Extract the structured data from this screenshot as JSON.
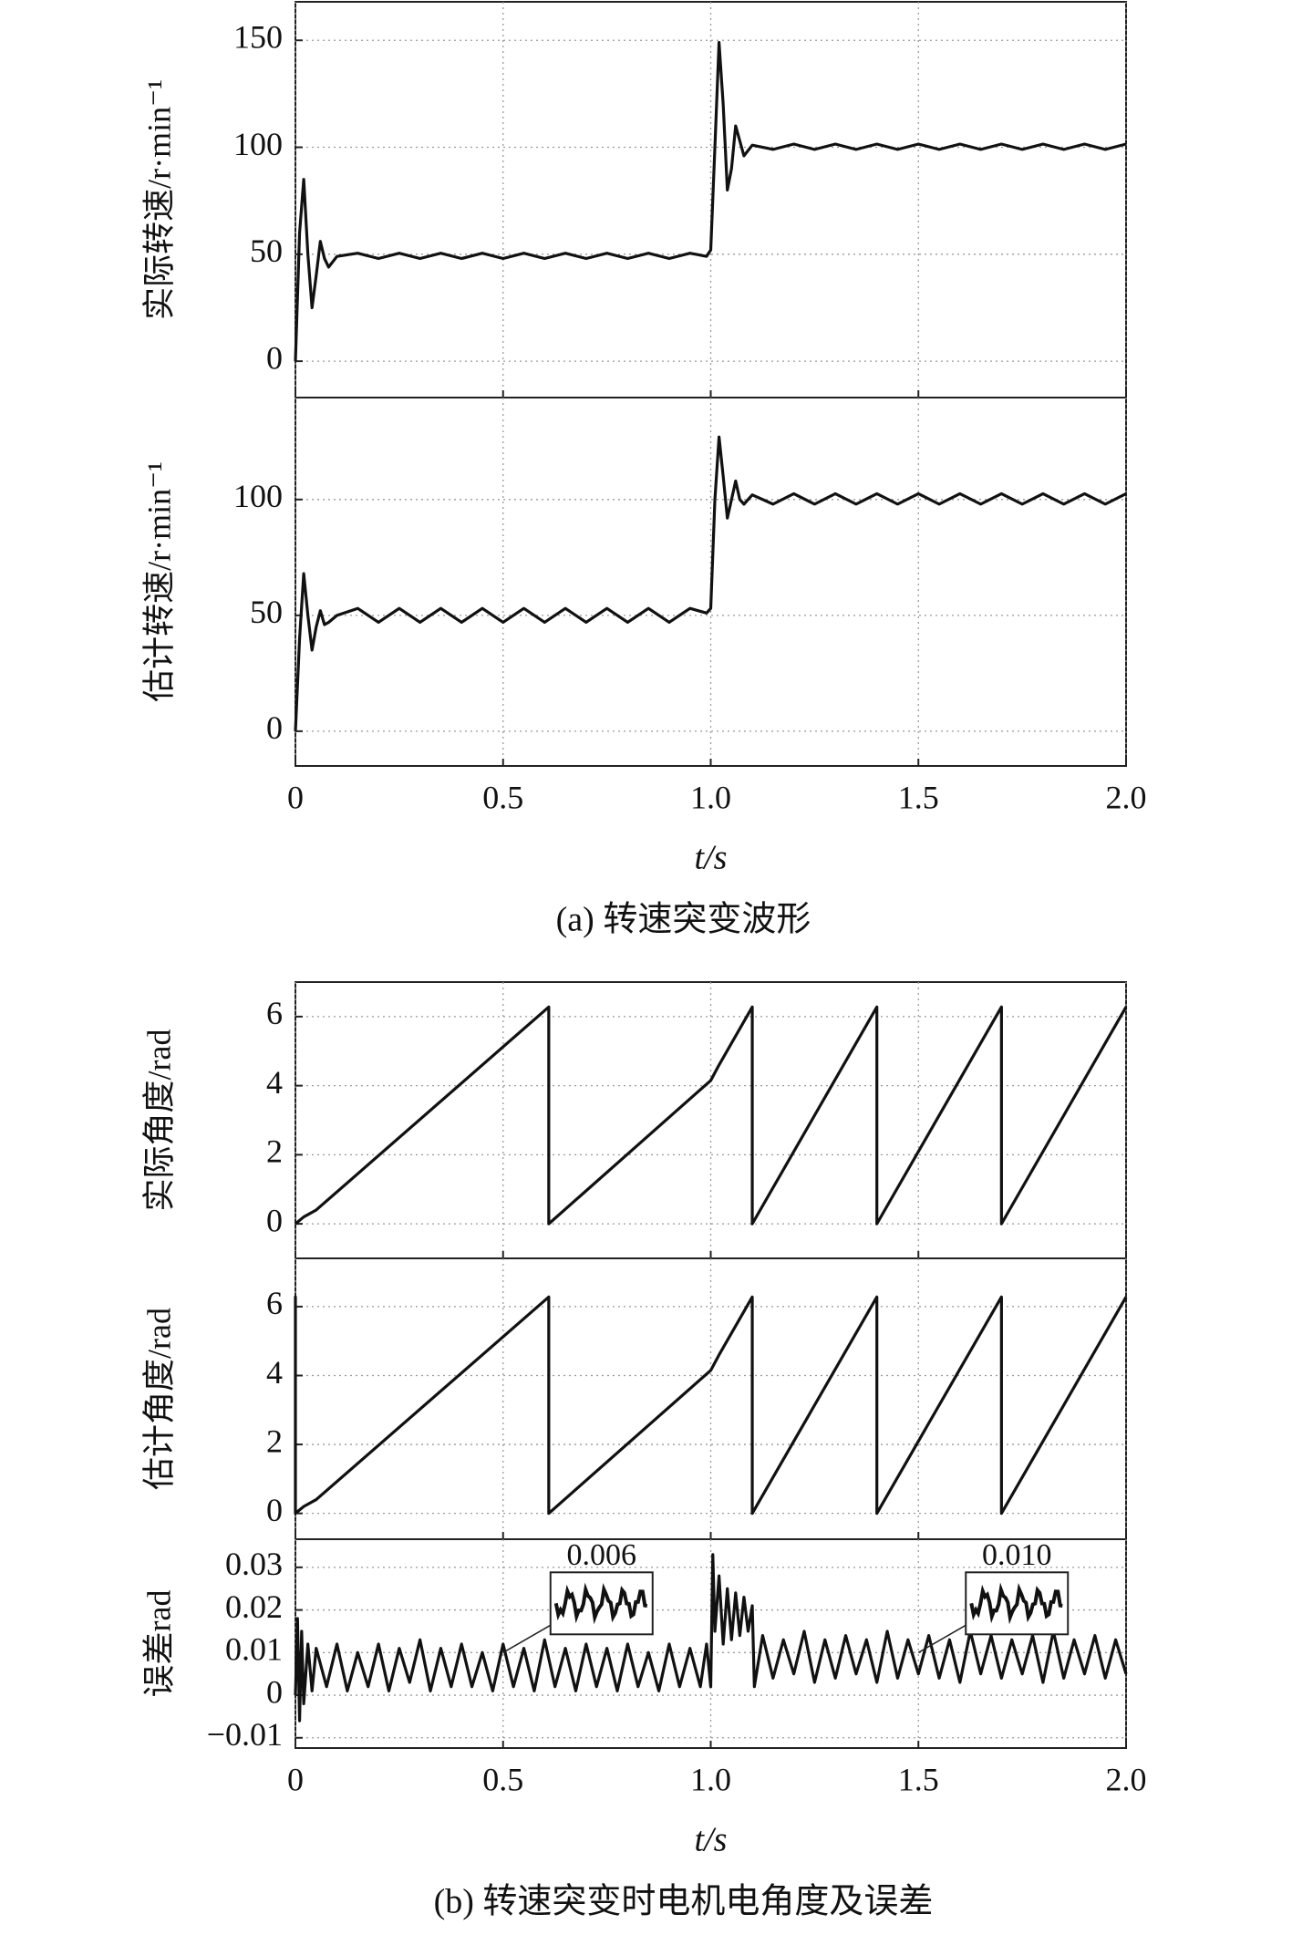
{
  "chart_data": [
    {
      "type": "line",
      "ylabel": "实际转速/r·min⁻¹",
      "color": "#111111",
      "grid": true,
      "show_xtick_labels": false,
      "xlim": [
        0,
        2
      ],
      "xticks": [
        0,
        0.5,
        {
          "value": 1,
          "label": "1.0"
        },
        1.5,
        {
          "value": 2,
          "label": "2.0"
        }
      ],
      "ylim": [
        -17,
        168
      ],
      "yticks": [
        0,
        50,
        100,
        150
      ],
      "x": [
        0,
        0.01,
        0.02,
        0.03,
        0.04,
        0.05,
        0.06,
        0.07,
        0.08,
        0.1,
        0.15,
        0.2,
        0.25,
        0.3,
        0.35,
        0.4,
        0.45,
        0.5,
        0.55,
        0.6,
        0.65,
        0.7,
        0.75,
        0.8,
        0.85,
        0.9,
        0.95,
        0.99,
        1.0,
        1.01,
        1.02,
        1.03,
        1.04,
        1.05,
        1.06,
        1.07,
        1.08,
        1.1,
        1.15,
        1.2,
        1.25,
        1.3,
        1.35,
        1.4,
        1.45,
        1.5,
        1.55,
        1.6,
        1.65,
        1.7,
        1.75,
        1.8,
        1.85,
        1.9,
        1.95,
        2.0
      ],
      "values": [
        0,
        60,
        85,
        50,
        25,
        40,
        56,
        48,
        44,
        49,
        50.5,
        48,
        50.5,
        48,
        50.5,
        48,
        50.5,
        48,
        50.5,
        48,
        50.5,
        48,
        50.5,
        48,
        50.5,
        48,
        50.5,
        49,
        52,
        100,
        149,
        120,
        80,
        90,
        110,
        103,
        96,
        101,
        99,
        101.5,
        99,
        101.5,
        99,
        101.5,
        99,
        101.5,
        99,
        101.5,
        99,
        101.5,
        99,
        101.5,
        99,
        101.5,
        99,
        101.5
      ]
    },
    {
      "type": "line",
      "ylabel": "估计转速/r·min⁻¹",
      "xlabel": "t/s",
      "caption": "(a) 转速突变波形",
      "color": "#111111",
      "grid": true,
      "show_xtick_labels": true,
      "xlim": [
        0,
        2
      ],
      "xticks": [
        0,
        0.5,
        {
          "value": 1,
          "label": "1.0"
        },
        1.5,
        {
          "value": 2,
          "label": "2.0"
        }
      ],
      "ylim": [
        -15,
        144
      ],
      "yticks": [
        0,
        50,
        100
      ],
      "x": [
        0,
        0.01,
        0.02,
        0.03,
        0.04,
        0.05,
        0.06,
        0.07,
        0.08,
        0.1,
        0.15,
        0.2,
        0.25,
        0.3,
        0.35,
        0.4,
        0.45,
        0.5,
        0.55,
        0.6,
        0.65,
        0.7,
        0.75,
        0.8,
        0.85,
        0.9,
        0.95,
        0.99,
        1.0,
        1.01,
        1.02,
        1.03,
        1.04,
        1.05,
        1.06,
        1.07,
        1.08,
        1.1,
        1.15,
        1.2,
        1.25,
        1.3,
        1.35,
        1.4,
        1.45,
        1.5,
        1.55,
        1.6,
        1.65,
        1.7,
        1.75,
        1.8,
        1.85,
        1.9,
        1.95,
        2.0
      ],
      "values": [
        0,
        40,
        68,
        50,
        35,
        45,
        52,
        46,
        47,
        50,
        53,
        47,
        53,
        47,
        53,
        47,
        53,
        47,
        53,
        47,
        53,
        47,
        53,
        47,
        53,
        47,
        53,
        51,
        53,
        100,
        127,
        110,
        92,
        100,
        108,
        100,
        98,
        102,
        98,
        102.5,
        98,
        102.5,
        98,
        102.5,
        98,
        102.5,
        98,
        102.5,
        98,
        102.5,
        98,
        102.5,
        98,
        102.5,
        98,
        102.5
      ]
    },
    {
      "type": "line",
      "ylabel": "实际角度/rad",
      "color": "#111111",
      "grid": true,
      "show_xtick_labels": false,
      "xlim": [
        0,
        2
      ],
      "xticks": [
        0,
        0.5,
        {
          "value": 1,
          "label": "1.0"
        },
        1.5,
        {
          "value": 2,
          "label": "2.0"
        }
      ],
      "ylim": [
        -1,
        7
      ],
      "yticks": [
        0,
        2,
        4,
        6
      ],
      "x": [
        0,
        0.02,
        0.05,
        0.61,
        0.61,
        1.0,
        1.02,
        1.1,
        1.1,
        1.4,
        1.4,
        1.7,
        1.7,
        2.0
      ],
      "values": [
        0,
        0.2,
        0.4,
        6.28,
        0,
        4.15,
        4.6,
        6.28,
        0,
        6.28,
        0,
        6.28,
        0,
        6.28
      ]
    },
    {
      "type": "line",
      "ylabel": "估计角度/rad",
      "color": "#111111",
      "grid": true,
      "show_xtick_labels": false,
      "xlim": [
        0,
        2
      ],
      "xticks": [
        0,
        0.5,
        {
          "value": 1,
          "label": "1.0"
        },
        1.5,
        {
          "value": 2,
          "label": "2.0"
        }
      ],
      "ylim": [
        -0.75,
        7.4
      ],
      "yticks": [
        0,
        2,
        4,
        6
      ],
      "x": [
        0,
        0,
        0,
        0.02,
        0.05,
        0.61,
        0.61,
        1.0,
        1.02,
        1.1,
        1.1,
        1.4,
        1.4,
        1.7,
        1.7,
        2.0
      ],
      "values": [
        0,
        6.28,
        0,
        0.2,
        0.4,
        6.28,
        0,
        4.15,
        4.6,
        6.28,
        0,
        6.28,
        0,
        6.28,
        0,
        6.28
      ]
    },
    {
      "type": "line",
      "ylabel": "误差rad",
      "xlabel": "t/s",
      "caption": "(b) 转速突变时电机电角度及误差",
      "color": "#111111",
      "grid": true,
      "show_xtick_labels": true,
      "xlim": [
        0,
        2
      ],
      "xticks": [
        0,
        0.5,
        {
          "value": 1,
          "label": "1.0"
        },
        1.5,
        {
          "value": 2,
          "label": "2.0"
        }
      ],
      "ylim": [
        -0.0124,
        0.0366
      ],
      "yticks": [
        {
          "value": -0.01,
          "label": "−0.01"
        },
        0,
        0.01,
        0.02,
        0.03
      ],
      "annotations": [
        {
          "text": "0.006",
          "x": 0.5,
          "y": 0.01
        },
        {
          "text": "0.010",
          "x": 1.5,
          "y": 0.01
        }
      ],
      "x": [
        0,
        0.005,
        0.01,
        0.015,
        0.02,
        0.03,
        0.04,
        0.05,
        0.075,
        0.1,
        0.125,
        0.15,
        0.175,
        0.2,
        0.225,
        0.25,
        0.275,
        0.3,
        0.325,
        0.35,
        0.375,
        0.4,
        0.425,
        0.45,
        0.475,
        0.5,
        0.525,
        0.55,
        0.575,
        0.6,
        0.625,
        0.65,
        0.675,
        0.7,
        0.725,
        0.75,
        0.775,
        0.8,
        0.825,
        0.85,
        0.875,
        0.9,
        0.925,
        0.95,
        0.975,
        0.99,
        1.0,
        1.005,
        1.01,
        1.02,
        1.03,
        1.04,
        1.05,
        1.06,
        1.07,
        1.08,
        1.09,
        1.1,
        1.105,
        1.125,
        1.15,
        1.175,
        1.2,
        1.225,
        1.25,
        1.275,
        1.3,
        1.325,
        1.35,
        1.375,
        1.4,
        1.425,
        1.45,
        1.475,
        1.5,
        1.525,
        1.55,
        1.575,
        1.6,
        1.625,
        1.65,
        1.675,
        1.7,
        1.725,
        1.75,
        1.775,
        1.8,
        1.825,
        1.85,
        1.875,
        1.9,
        1.925,
        1.95,
        1.975,
        2.0
      ],
      "values": [
        0,
        0.018,
        -0.006,
        0.015,
        -0.002,
        0.012,
        0.001,
        0.011,
        0.002,
        0.012,
        0.001,
        0.01,
        0.002,
        0.012,
        0.001,
        0.011,
        0.003,
        0.013,
        0.001,
        0.011,
        0.002,
        0.012,
        0.002,
        0.01,
        0.001,
        0.012,
        0.002,
        0.011,
        0.001,
        0.013,
        0.002,
        0.011,
        0.001,
        0.012,
        0.002,
        0.011,
        0.001,
        0.012,
        0.002,
        0.01,
        0.001,
        0.012,
        0.002,
        0.011,
        0.002,
        0.012,
        0.002,
        0.033,
        0.015,
        0.028,
        0.012,
        0.025,
        0.013,
        0.024,
        0.014,
        0.023,
        0.015,
        0.021,
        0.002,
        0.014,
        0.004,
        0.013,
        0.005,
        0.015,
        0.003,
        0.013,
        0.004,
        0.014,
        0.005,
        0.013,
        0.003,
        0.015,
        0.004,
        0.013,
        0.005,
        0.014,
        0.004,
        0.013,
        0.003,
        0.015,
        0.005,
        0.014,
        0.004,
        0.013,
        0.005,
        0.014,
        0.003,
        0.015,
        0.004,
        0.013,
        0.005,
        0.014,
        0.004,
        0.013,
        0.005
      ]
    }
  ]
}
